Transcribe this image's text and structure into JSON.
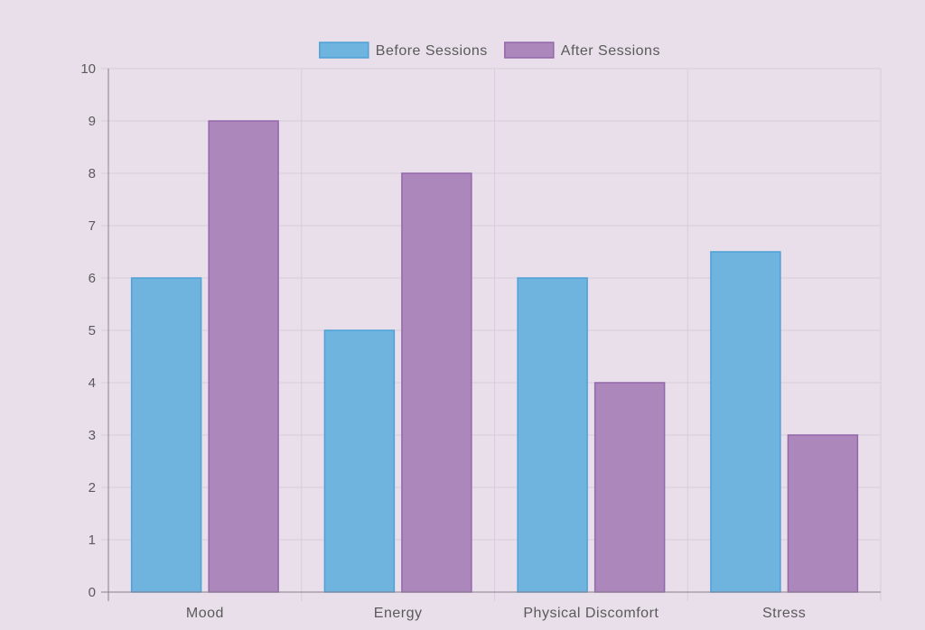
{
  "chart_data": {
    "type": "bar",
    "title": "",
    "xlabel": "",
    "ylabel": "",
    "categories": [
      "Mood",
      "Energy",
      "Physical Discomfort",
      "Stress"
    ],
    "series": [
      {
        "name": "Before Sessions",
        "values": [
          6,
          5,
          6,
          6.5
        ],
        "color": "#6fb4df",
        "border": "#4fa0d6"
      },
      {
        "name": "After Sessions",
        "values": [
          9,
          8,
          4,
          3
        ],
        "color": "#ab87bb",
        "border": "#9467ab"
      }
    ],
    "ylim": [
      0,
      10
    ],
    "yticks": [
      0,
      1,
      2,
      3,
      4,
      5,
      6,
      7,
      8,
      9,
      10
    ],
    "grid": true,
    "legend": "top-center",
    "background": "#e8dfea",
    "grid_color": "#d9ccdb",
    "axis_color": "#8a7f8c",
    "text_color": "#5a5a5a"
  }
}
